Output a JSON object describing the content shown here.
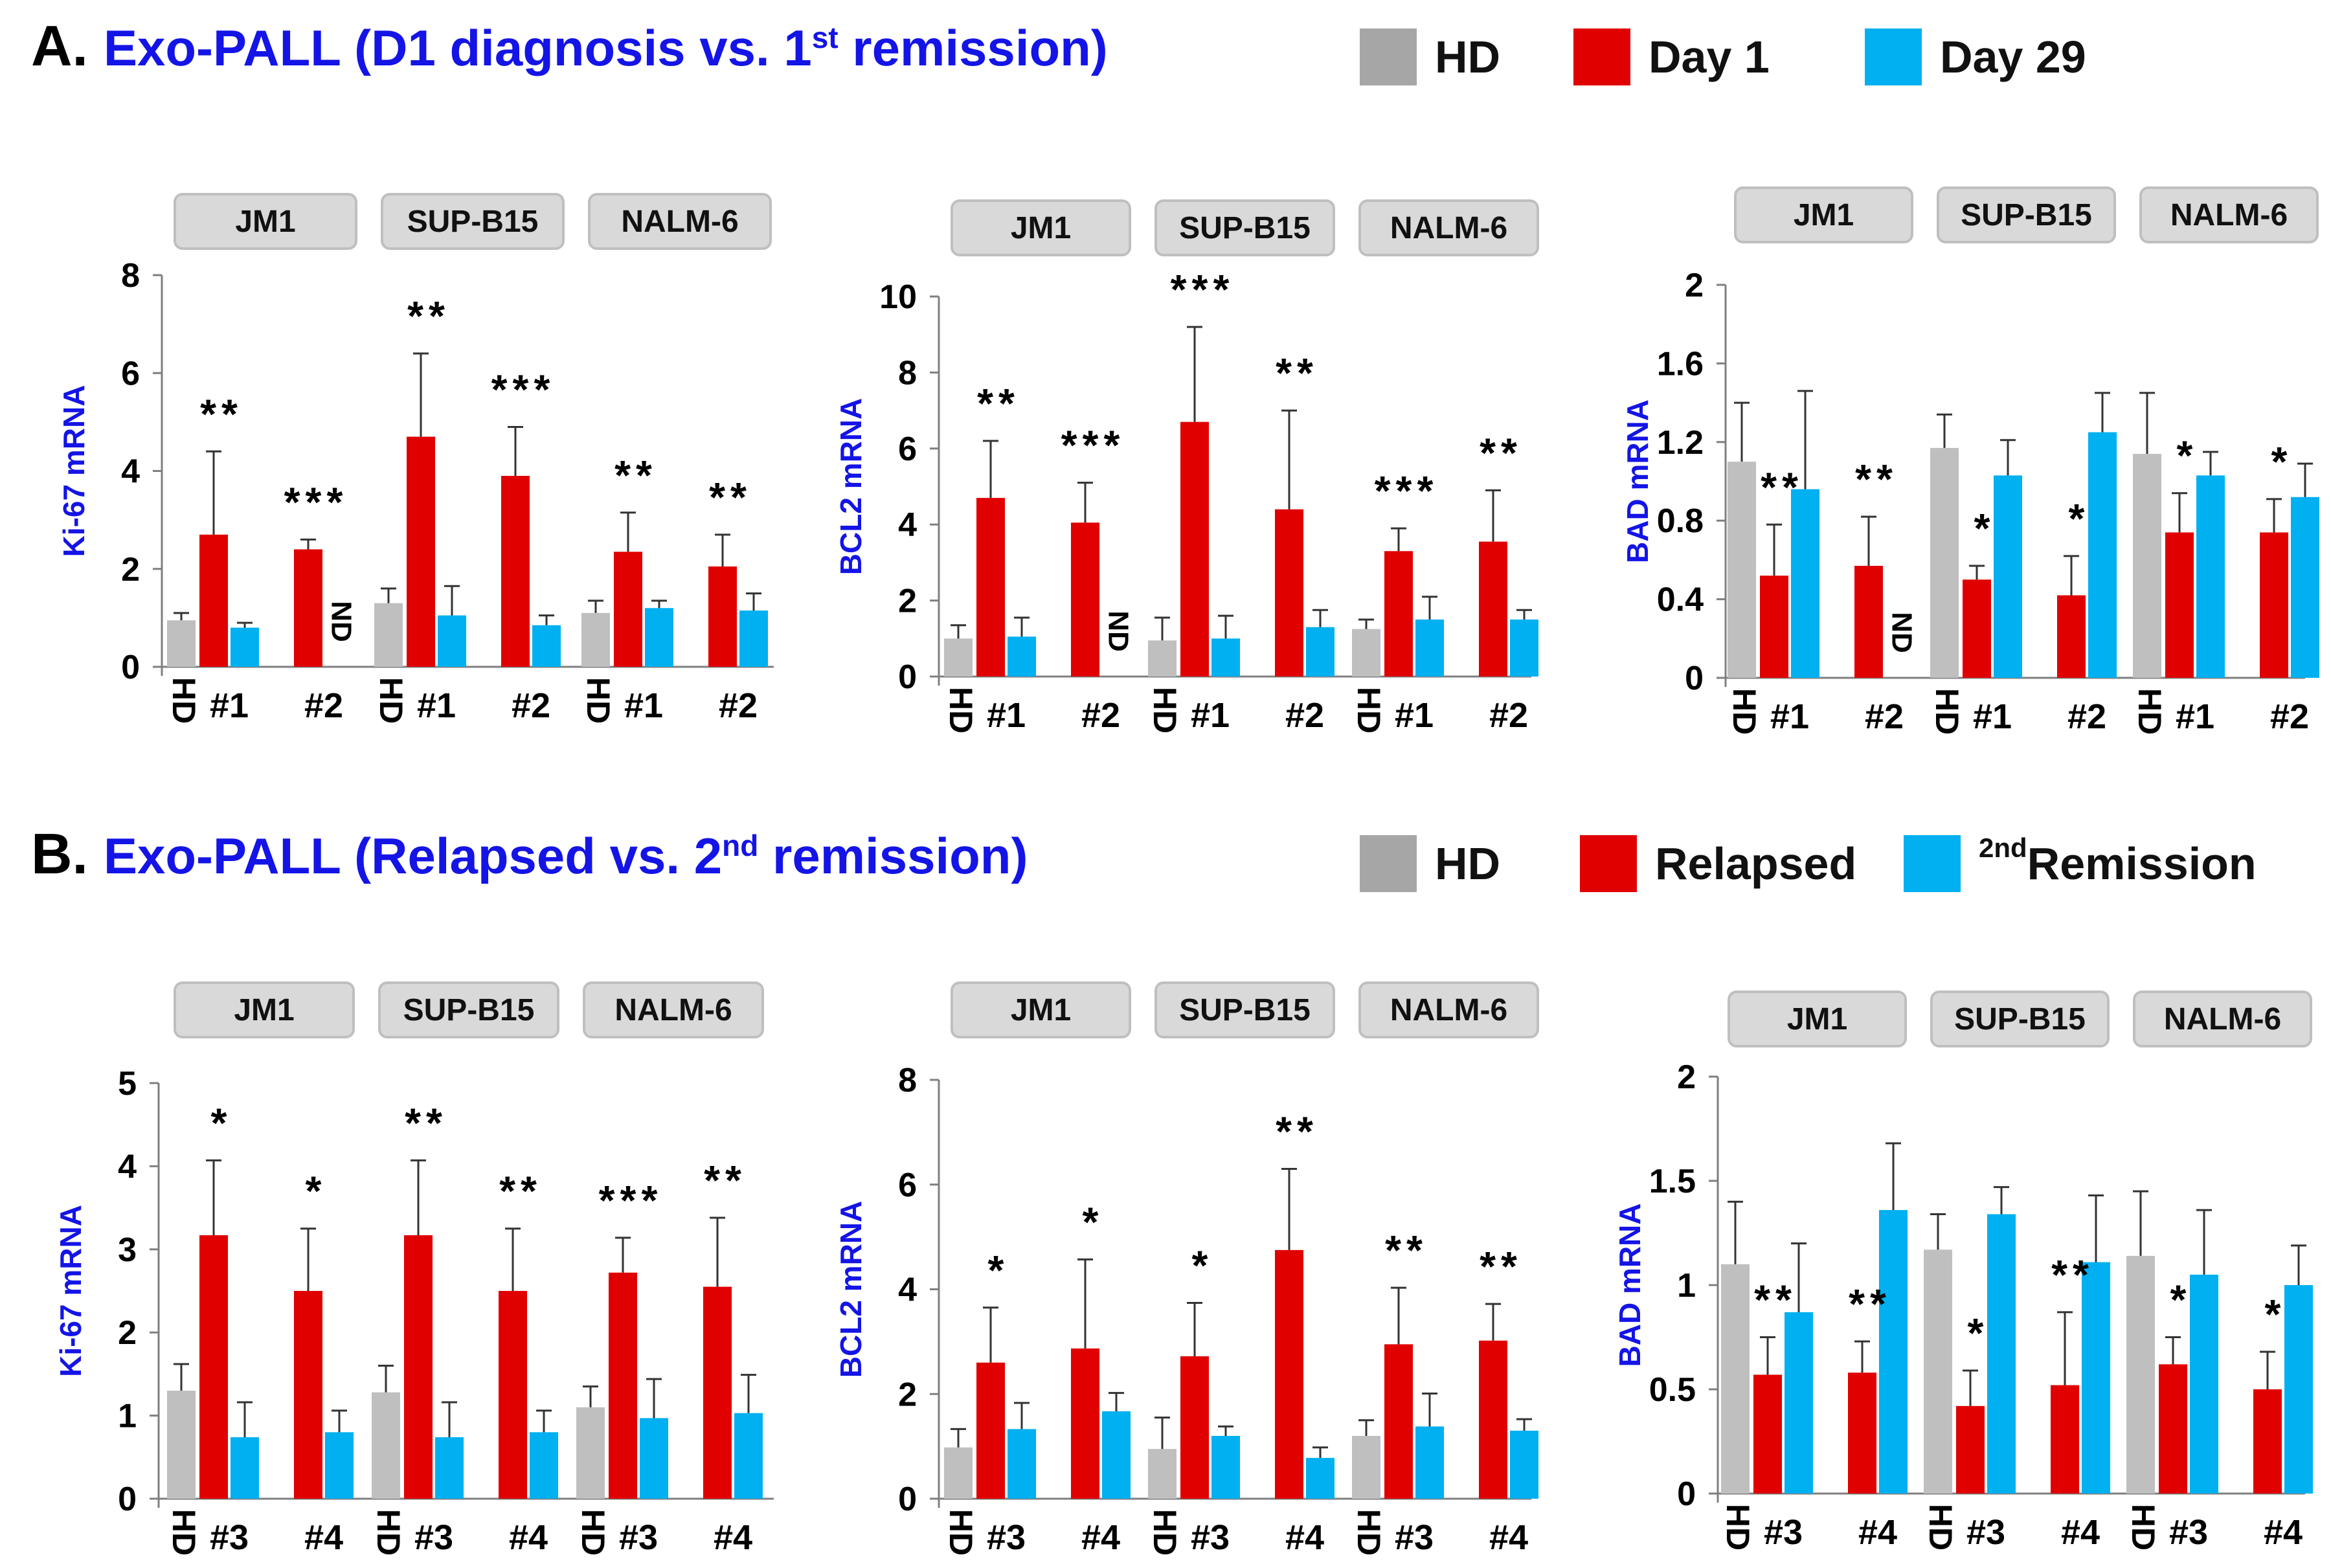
{
  "panels": [
    {
      "letter": "A.",
      "title_pre": "Exo-PALL (D1 diagnosis vs. 1",
      "title_sup": "st",
      "title_post": " remission)",
      "legend": [
        {
          "label": "HD",
          "sup": "",
          "color": "#a6a6a6"
        },
        {
          "label": "Day 1",
          "sup": "",
          "color": "#e00000"
        },
        {
          "label": "Day 29",
          "sup": "",
          "color": "#00b0f0"
        }
      ]
    },
    {
      "letter": "B.",
      "title_pre": "Exo-PALL (Relapsed vs. 2",
      "title_sup": "nd",
      "title_post": " remission)",
      "legend": [
        {
          "label": "HD",
          "sup": "",
          "color": "#a6a6a6"
        },
        {
          "label": "Relapsed",
          "sup": "",
          "color": "#e00000"
        },
        {
          "label": " Remission",
          "sup": "2nd",
          "color": "#00b0f0"
        }
      ]
    }
  ],
  "colors": {
    "hd": "#bfbfbf",
    "red": "#e00000",
    "blue": "#00b0f0",
    "title": "#1414e6",
    "cellbox": "#d9d9d9"
  },
  "chart_data": [
    {
      "id": "A-Ki67",
      "type": "bar",
      "ylabel": "Ki-67 mRNA",
      "ylim": [
        0,
        8
      ],
      "yticks": [
        0,
        2,
        4,
        6,
        8
      ],
      "cell_lines": [
        "JM1",
        "SUP-B15",
        "NALM-6"
      ],
      "x_labels": [
        "HD",
        "#1",
        "#2",
        "HD",
        "#1",
        "#2",
        "HD",
        "#1",
        "#2"
      ],
      "groups": [
        {
          "hd": [
            0.95,
            0.15
          ],
          "pairs": [
            {
              "label": "#1",
              "red": [
                2.7,
                1.7
              ],
              "blue": [
                0.8,
                0.1
              ],
              "sig": "**",
              "nd": false
            },
            {
              "label": "#2",
              "red": [
                2.4,
                0.2
              ],
              "blue": null,
              "sig": "***",
              "nd": true
            }
          ]
        },
        {
          "hd": [
            1.3,
            0.3
          ],
          "pairs": [
            {
              "label": "#1",
              "red": [
                4.7,
                1.7
              ],
              "blue": [
                1.05,
                0.6
              ],
              "sig": "**",
              "nd": false
            },
            {
              "label": "#2",
              "red": [
                3.9,
                1.0
              ],
              "blue": [
                0.85,
                0.2
              ],
              "sig": "***",
              "nd": false
            }
          ]
        },
        {
          "hd": [
            1.1,
            0.25
          ],
          "pairs": [
            {
              "label": "#1",
              "red": [
                2.35,
                0.8
              ],
              "blue": [
                1.2,
                0.15
              ],
              "sig": "**",
              "nd": false
            },
            {
              "label": "#2",
              "red": [
                2.05,
                0.65
              ],
              "blue": [
                1.15,
                0.35
              ],
              "sig": "**",
              "nd": false
            }
          ]
        }
      ]
    },
    {
      "id": "A-BCL2",
      "type": "bar",
      "ylabel": "BCL2 mRNA",
      "ylim": [
        0,
        10
      ],
      "yticks": [
        0,
        2,
        4,
        6,
        8,
        10
      ],
      "cell_lines": [
        "JM1",
        "SUP-B15",
        "NALM-6"
      ],
      "x_labels": [
        "HD",
        "#1",
        "#2",
        "HD",
        "#1",
        "#2",
        "HD",
        "#1",
        "#2"
      ],
      "groups": [
        {
          "hd": [
            1.0,
            0.35
          ],
          "pairs": [
            {
              "label": "#1",
              "red": [
                4.7,
                1.5
              ],
              "blue": [
                1.05,
                0.5
              ],
              "sig": "**",
              "nd": false
            },
            {
              "label": "#2",
              "red": [
                4.05,
                1.05
              ],
              "blue": null,
              "sig": "***",
              "nd": true
            }
          ]
        },
        {
          "hd": [
            0.95,
            0.6
          ],
          "pairs": [
            {
              "label": "#1",
              "red": [
                6.7,
                2.5
              ],
              "blue": [
                1.0,
                0.6
              ],
              "sig": "***",
              "nd": false
            },
            {
              "label": "#2",
              "red": [
                4.4,
                2.6
              ],
              "blue": [
                1.3,
                0.45
              ],
              "sig": "**",
              "nd": false
            }
          ]
        },
        {
          "hd": [
            1.25,
            0.25
          ],
          "pairs": [
            {
              "label": "#1",
              "red": [
                3.3,
                0.6
              ],
              "blue": [
                1.5,
                0.6
              ],
              "sig": "***",
              "nd": false
            },
            {
              "label": "#2",
              "red": [
                3.55,
                1.35
              ],
              "blue": [
                1.5,
                0.25
              ],
              "sig": "**",
              "nd": false
            }
          ]
        }
      ]
    },
    {
      "id": "A-BAD",
      "type": "bar",
      "ylabel": "BAD mRNA",
      "ylim": [
        0,
        2
      ],
      "yticks": [
        "0",
        "0.4",
        "0.8",
        "1.2",
        "1.6",
        "2"
      ],
      "cell_lines": [
        "JM1",
        "SUP-B15",
        "NALM-6"
      ],
      "x_labels": [
        "HD",
        "#1",
        "#2",
        "HD",
        "#1",
        "#2",
        "HD",
        "#1",
        "#2"
      ],
      "groups": [
        {
          "hd": [
            1.1,
            0.3
          ],
          "pairs": [
            {
              "label": "#1",
              "red": [
                0.52,
                0.26
              ],
              "blue": [
                0.96,
                0.5
              ],
              "sig": "**",
              "nd": false
            },
            {
              "label": "#2",
              "red": [
                0.57,
                0.25
              ],
              "blue": null,
              "sig": "**",
              "nd": true
            }
          ]
        },
        {
          "hd": [
            1.17,
            0.17
          ],
          "pairs": [
            {
              "label": "#1",
              "red": [
                0.5,
                0.07
              ],
              "blue": [
                1.03,
                0.18
              ],
              "sig": "*",
              "nd": false
            },
            {
              "label": "#2",
              "red": [
                0.42,
                0.2
              ],
              "blue": [
                1.25,
                0.2
              ],
              "sig": "*",
              "nd": false
            }
          ]
        },
        {
          "hd": [
            1.14,
            0.31
          ],
          "pairs": [
            {
              "label": "#1",
              "red": [
                0.74,
                0.2
              ],
              "blue": [
                1.03,
                0.12
              ],
              "sig": "*",
              "nd": false
            },
            {
              "label": "#2",
              "red": [
                0.74,
                0.17
              ],
              "blue": [
                0.92,
                0.17
              ],
              "sig": "*",
              "nd": false
            }
          ]
        }
      ]
    },
    {
      "id": "B-Ki67",
      "type": "bar",
      "ylabel": "Ki-67 mRNA",
      "ylim": [
        0,
        5
      ],
      "yticks": [
        0,
        1,
        2,
        3,
        4,
        5
      ],
      "cell_lines": [
        "JM1",
        "SUP-B15",
        "NALM-6"
      ],
      "x_labels": [
        "HD",
        "#3",
        "#4",
        "HD",
        "#3",
        "#4",
        "HD",
        "#3",
        "#4"
      ],
      "groups": [
        {
          "hd": [
            1.3,
            0.32
          ],
          "pairs": [
            {
              "label": "#3",
              "red": [
                3.17,
                0.9
              ],
              "blue": [
                0.74,
                0.42
              ],
              "sig": "*",
              "nd": false
            },
            {
              "label": "#4",
              "red": [
                2.5,
                0.75
              ],
              "blue": [
                0.8,
                0.26
              ],
              "sig": "*",
              "nd": false
            }
          ]
        },
        {
          "hd": [
            1.28,
            0.32
          ],
          "pairs": [
            {
              "label": "#3",
              "red": [
                3.17,
                0.9
              ],
              "blue": [
                0.74,
                0.42
              ],
              "sig": "**",
              "nd": false
            },
            {
              "label": "#4",
              "red": [
                2.5,
                0.75
              ],
              "blue": [
                0.8,
                0.26
              ],
              "sig": "**",
              "nd": false
            }
          ]
        },
        {
          "hd": [
            1.1,
            0.25
          ],
          "pairs": [
            {
              "label": "#3",
              "red": [
                2.72,
                0.42
              ],
              "blue": [
                0.97,
                0.47
              ],
              "sig": "***",
              "nd": false
            },
            {
              "label": "#4",
              "red": [
                2.55,
                0.83
              ],
              "blue": [
                1.03,
                0.46
              ],
              "sig": "**",
              "nd": false
            }
          ]
        }
      ]
    },
    {
      "id": "B-BCL2",
      "type": "bar",
      "ylabel": "BCL2 mRNA",
      "ylim": [
        0,
        8
      ],
      "yticks": [
        0,
        2,
        4,
        6,
        8
      ],
      "cell_lines": [
        "JM1",
        "SUP-B15",
        "NALM-6"
      ],
      "x_labels": [
        "HD",
        "#3",
        "#4",
        "HD",
        "#3",
        "#4",
        "HD",
        "#3",
        "#4"
      ],
      "groups": [
        {
          "hd": [
            0.98,
            0.35
          ],
          "pairs": [
            {
              "label": "#3",
              "red": [
                2.6,
                1.05
              ],
              "blue": [
                1.33,
                0.5
              ],
              "sig": "*",
              "nd": false
            },
            {
              "label": "#4",
              "red": [
                2.87,
                1.7
              ],
              "blue": [
                1.67,
                0.35
              ],
              "sig": "*",
              "nd": false
            }
          ]
        },
        {
          "hd": [
            0.95,
            0.6
          ],
          "pairs": [
            {
              "label": "#3",
              "red": [
                2.72,
                1.02
              ],
              "blue": [
                1.2,
                0.18
              ],
              "sig": "*",
              "nd": false
            },
            {
              "label": "#4",
              "red": [
                4.75,
                1.55
              ],
              "blue": [
                0.78,
                0.2
              ],
              "sig": "**",
              "nd": false
            }
          ]
        },
        {
          "hd": [
            1.2,
            0.3
          ],
          "pairs": [
            {
              "label": "#3",
              "red": [
                2.95,
                1.08
              ],
              "blue": [
                1.38,
                0.63
              ],
              "sig": "**",
              "nd": false
            },
            {
              "label": "#4",
              "red": [
                3.02,
                0.7
              ],
              "blue": [
                1.3,
                0.22
              ],
              "sig": "**",
              "nd": false
            }
          ]
        }
      ]
    },
    {
      "id": "B-BAD",
      "type": "bar",
      "ylabel": "BAD mRNA",
      "ylim": [
        0,
        2
      ],
      "yticks": [
        "0",
        "0.5",
        "1",
        "1.5",
        "2"
      ],
      "cell_lines": [
        "JM1",
        "SUP-B15",
        "NALM-6"
      ],
      "x_labels": [
        "HD",
        "#3",
        "#4",
        "HD",
        "#3",
        "#4",
        "HD",
        "#3",
        "#4"
      ],
      "groups": [
        {
          "hd": [
            1.1,
            0.3
          ],
          "pairs": [
            {
              "label": "#3",
              "red": [
                0.57,
                0.18
              ],
              "blue": [
                0.87,
                0.33
              ],
              "sig": "**",
              "nd": false
            },
            {
              "label": "#4",
              "red": [
                0.58,
                0.15
              ],
              "blue": [
                1.36,
                0.32
              ],
              "sig": "**",
              "nd": false
            }
          ]
        },
        {
          "hd": [
            1.17,
            0.17
          ],
          "pairs": [
            {
              "label": "#3",
              "red": [
                0.42,
                0.17
              ],
              "blue": [
                1.34,
                0.13
              ],
              "sig": "*",
              "nd": false
            },
            {
              "label": "#4",
              "red": [
                0.52,
                0.35
              ],
              "blue": [
                1.11,
                0.32
              ],
              "sig": "**",
              "nd": false
            }
          ]
        },
        {
          "hd": [
            1.14,
            0.31
          ],
          "pairs": [
            {
              "label": "#3",
              "red": [
                0.62,
                0.13
              ],
              "blue": [
                1.05,
                0.31
              ],
              "sig": "*",
              "nd": false
            },
            {
              "label": "#4",
              "red": [
                0.5,
                0.18
              ],
              "blue": [
                1.0,
                0.19
              ],
              "sig": "*",
              "nd": false
            }
          ]
        }
      ]
    }
  ]
}
